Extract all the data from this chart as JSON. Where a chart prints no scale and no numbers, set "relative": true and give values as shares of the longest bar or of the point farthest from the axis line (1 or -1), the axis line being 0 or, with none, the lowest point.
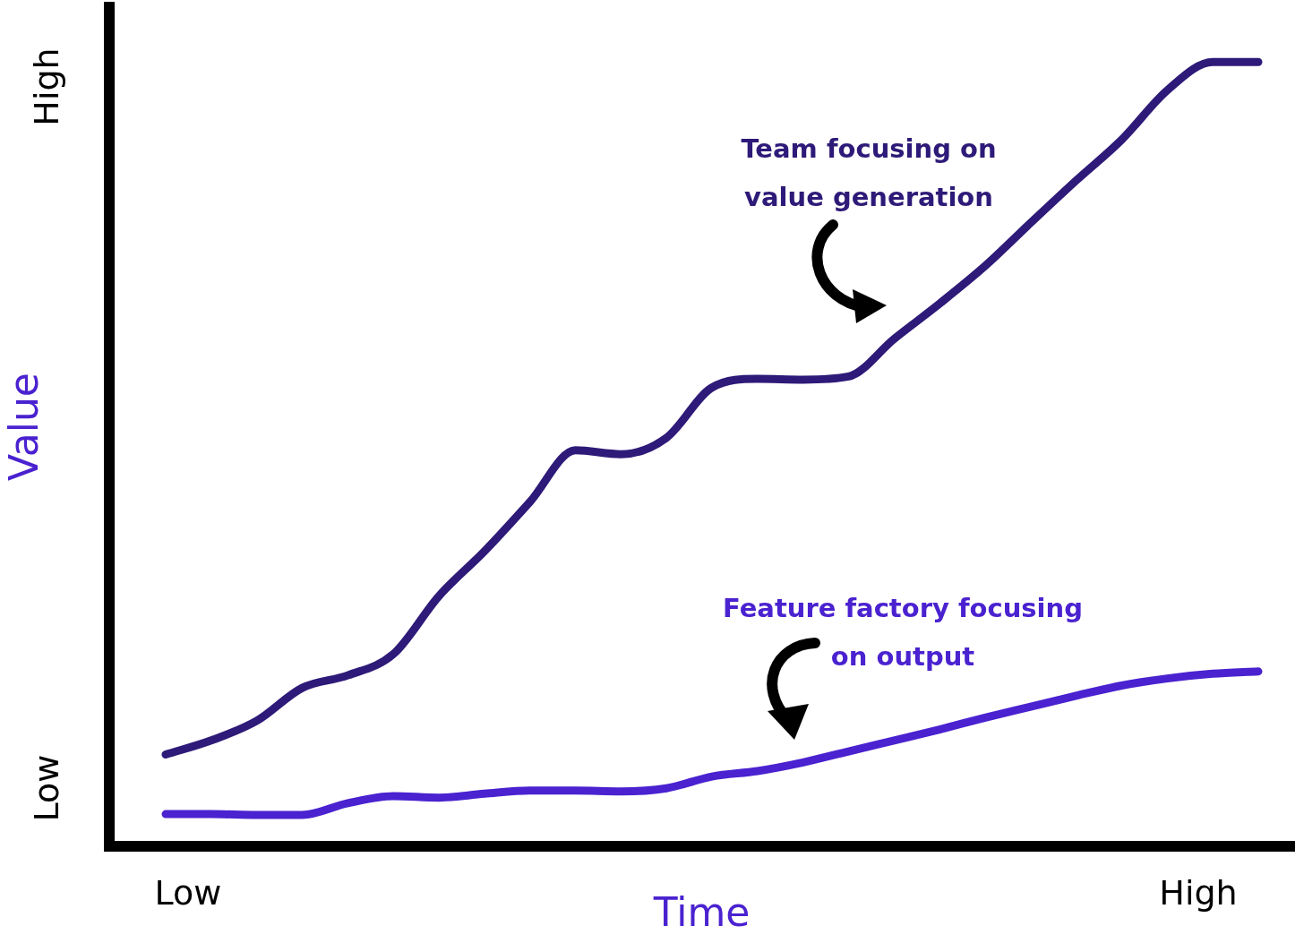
{
  "chart_data": {
    "type": "line",
    "xlabel": "Time",
    "ylabel": "Value",
    "relative": true,
    "categories": [
      null,
      null,
      null,
      null,
      null,
      null,
      null,
      null,
      null,
      null,
      null,
      null,
      null,
      null,
      null,
      null,
      null,
      null,
      null,
      null,
      null,
      null,
      null,
      null,
      null
    ],
    "grid": false,
    "legend": false,
    "marker": "none",
    "line_style": "solid",
    "series": [
      {
        "color": "#2e1a78",
        "values": [
          0.117,
          0.135,
          0.16,
          0.202,
          0.218,
          0.245,
          0.319,
          0.376,
          0.439,
          0.505,
          0.5,
          0.521,
          0.585,
          0.596,
          0.595,
          0.599,
          0.647,
          0.692,
          0.74,
          0.795,
          0.849,
          0.901,
          0.964,
          1,
          1
        ]
      },
      {
        "color": "#4a22d0",
        "values": [
          0.041,
          0.041,
          0.04,
          0.04,
          0.055,
          0.064,
          0.062,
          0.067,
          0.071,
          0.071,
          0.07,
          0.074,
          0.089,
          0.096,
          0.107,
          0.121,
          0.135,
          0.149,
          0.164,
          0.178,
          0.192,
          0.205,
          0.214,
          0.22,
          0.223
        ]
      }
    ],
    "annotations": [
      "Low",
      "High",
      "Low",
      "High",
      "Team focusing on value generation",
      "Feature factory focusing on output"
    ]
  }
}
